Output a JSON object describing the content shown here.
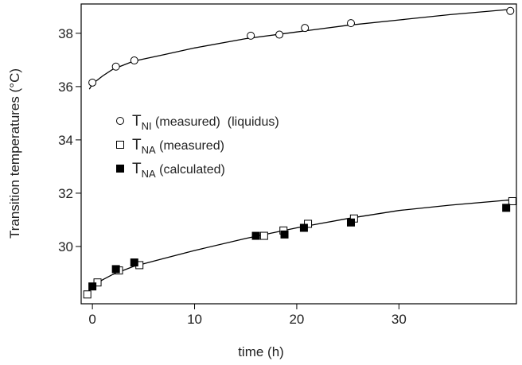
{
  "chart_data": {
    "type": "scatter",
    "x_label": "time (h)",
    "y_label": "Transition temperatures (°C)",
    "xlim": [
      -1.1,
      41.5
    ],
    "ylim": [
      27.85,
      39.1
    ],
    "xticks": [
      0,
      10,
      20,
      30
    ],
    "yticks": [
      30,
      32,
      34,
      36,
      38
    ],
    "series": [
      {
        "name": "T",
        "name_sub": "NI",
        "name_suffix": " (measured)  (liquidus)",
        "marker": "open-circle",
        "color": "#000000",
        "x": [
          0.0,
          2.3,
          4.1,
          15.5,
          18.3,
          20.8,
          25.3,
          40.9
        ],
        "values": [
          36.15,
          36.75,
          36.98,
          37.91,
          37.95,
          38.2,
          38.38,
          38.84
        ]
      },
      {
        "name": "T",
        "name_sub": "NA",
        "name_suffix": " (measured)",
        "marker": "open-square",
        "color": "#000000",
        "x": [
          -0.5,
          0.5,
          2.6,
          4.6,
          16.8,
          18.7,
          21.1,
          25.6,
          41.1
        ],
        "values": [
          28.2,
          28.65,
          29.1,
          29.3,
          30.4,
          30.6,
          30.85,
          31.05,
          31.7
        ]
      },
      {
        "name": "T",
        "name_sub": "NA",
        "name_suffix": " (calculated)",
        "marker": "filled-square",
        "color": "#000000",
        "x": [
          0.0,
          2.3,
          4.1,
          16.0,
          18.8,
          20.7,
          25.3,
          40.5
        ],
        "values": [
          28.5,
          29.15,
          29.4,
          30.4,
          30.45,
          30.7,
          30.9,
          31.45
        ]
      },
      {
        "marker": "line",
        "color": "#000000",
        "x": [
          -0.3,
          0,
          1,
          2,
          4,
          7,
          10,
          15,
          20,
          25,
          30,
          35,
          41
        ],
        "values": [
          35.9,
          36.1,
          36.4,
          36.65,
          36.95,
          37.2,
          37.45,
          37.8,
          38.05,
          38.3,
          38.5,
          38.7,
          38.9
        ]
      },
      {
        "marker": "line",
        "color": "#000000",
        "x": [
          -0.4,
          0,
          1,
          2,
          4,
          7,
          10,
          15,
          20,
          25,
          30,
          35,
          41
        ],
        "values": [
          28.3,
          28.5,
          28.75,
          28.95,
          29.25,
          29.55,
          29.85,
          30.3,
          30.7,
          31.05,
          31.35,
          31.55,
          31.75
        ]
      }
    ]
  }
}
